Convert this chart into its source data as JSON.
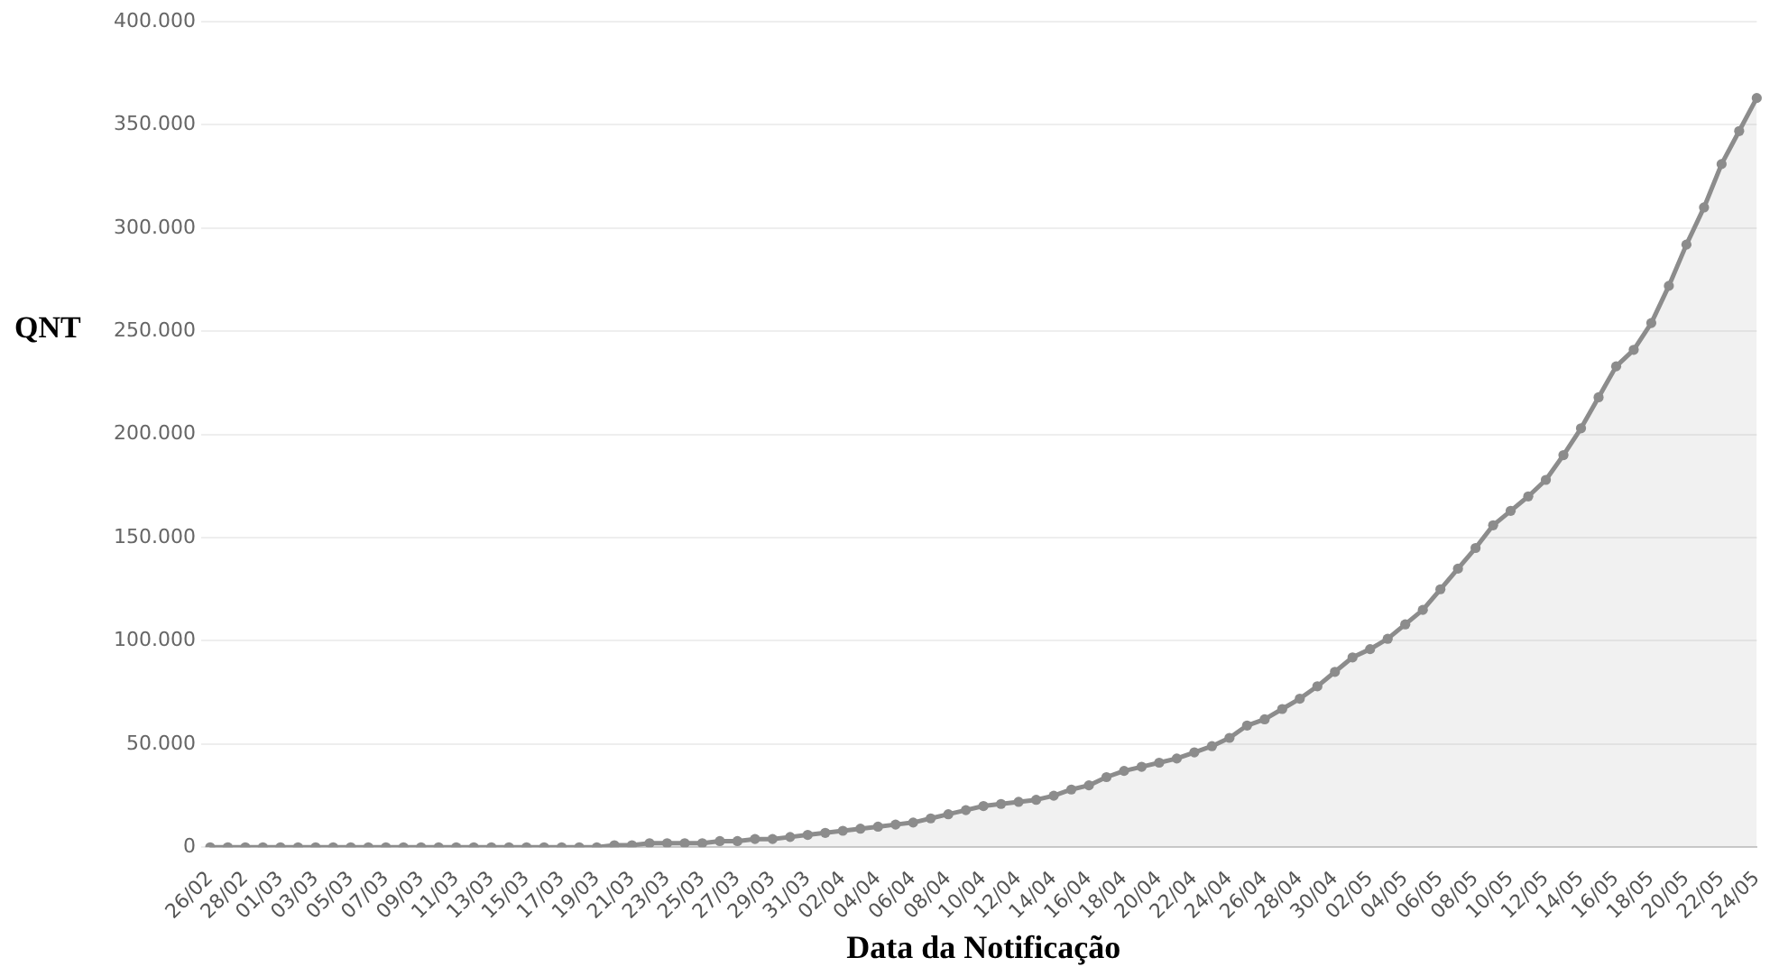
{
  "chart_data": {
    "type": "area",
    "xlabel": "Data da Notificação",
    "ylabel": "QNT",
    "categories": [
      "26/02",
      null,
      "28/02",
      null,
      "01/03",
      null,
      "03/03",
      null,
      "05/03",
      null,
      "07/03",
      null,
      "09/03",
      null,
      "11/03",
      null,
      "13/03",
      null,
      "15/03",
      null,
      "17/03",
      null,
      "19/03",
      null,
      "21/03",
      null,
      "23/03",
      null,
      "25/03",
      null,
      "27/03",
      null,
      "29/03",
      null,
      "31/03",
      null,
      "02/04",
      null,
      "04/04",
      null,
      "06/04",
      null,
      "08/04",
      null,
      "10/04",
      null,
      "12/04",
      null,
      "14/04",
      null,
      "16/04",
      null,
      "18/04",
      null,
      "20/04",
      null,
      "22/04",
      null,
      "24/04",
      null,
      "26/04",
      null,
      "28/04",
      null,
      "30/04",
      null,
      "02/05",
      null,
      "04/05",
      null,
      "06/05",
      null,
      "08/05",
      null,
      "10/05",
      null,
      "12/05",
      null,
      "14/05",
      null,
      "16/05",
      null,
      "18/05",
      null,
      "20/05",
      null,
      "22/05",
      null,
      "24/05"
    ],
    "series": [
      {
        "color": "#8c8c8c",
        "values": [
          0,
          0,
          0,
          0,
          0,
          0,
          0,
          0,
          0,
          0,
          0,
          0,
          0,
          0,
          0,
          0,
          0,
          0,
          0,
          0,
          0,
          0,
          0,
          1000,
          1000,
          2000,
          2000,
          2000,
          2000,
          3000,
          3000,
          4000,
          4000,
          5000,
          6000,
          7000,
          8000,
          9000,
          10000,
          11000,
          12000,
          14000,
          16000,
          18000,
          20000,
          21000,
          22000,
          23000,
          25000,
          28000,
          30000,
          34000,
          37000,
          39000,
          41000,
          43000,
          46000,
          49000,
          53000,
          59000,
          62000,
          67000,
          72000,
          78000,
          85000,
          92000,
          96000,
          101000,
          108000,
          115000,
          125000,
          135000,
          145000,
          156000,
          163000,
          170000,
          178000,
          190000,
          203000,
          218000,
          233000,
          241000,
          254000,
          272000,
          292000,
          310000,
          331000,
          347000,
          363000
        ]
      }
    ],
    "ylim": [
      0,
      400000
    ],
    "yticks": [
      {
        "value": 0,
        "label": "0"
      },
      {
        "value": 50000,
        "label": "50.000"
      },
      {
        "value": 100000,
        "label": "100.000"
      },
      {
        "value": 150000,
        "label": "150.000"
      },
      {
        "value": 200000,
        "label": "200.000"
      },
      {
        "value": 250000,
        "label": "250.000"
      },
      {
        "value": 300000,
        "label": "300.000"
      },
      {
        "value": 350000,
        "label": "350.000"
      },
      {
        "value": 400000,
        "label": "400.000"
      }
    ],
    "grid": "y",
    "legend": false,
    "marker": "circle",
    "line_style": "solid"
  }
}
